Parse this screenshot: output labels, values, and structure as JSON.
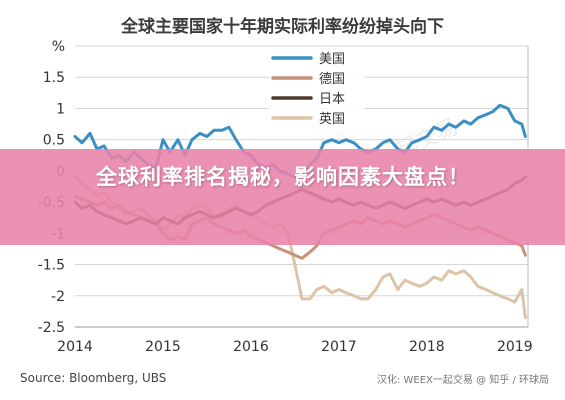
{
  "chart_data": {
    "type": "line",
    "title": "全球主要国家十年期实际利率纷纷掉头向下",
    "ylabel": "%",
    "ylim": [
      -2.5,
      2
    ],
    "yticks": [
      -2.5,
      -2,
      -1.5,
      -1,
      -0.5,
      0,
      0.5,
      1,
      1.5,
      2
    ],
    "ytick_labels": [
      "-2.5",
      "-2",
      "-1.5",
      "-1",
      "-0.5",
      "0",
      "0.5",
      "1",
      "1.5",
      "%"
    ],
    "xlim": [
      2014,
      2019.15
    ],
    "xticks": [
      2014,
      2015,
      2016,
      2017,
      2018,
      2019
    ],
    "xtick_labels": [
      "2014",
      "2015",
      "2016",
      "2017",
      "2018",
      "2019"
    ],
    "grid": true,
    "legend_position": "top-center",
    "series": [
      {
        "name": "美国",
        "color": "#3a8fc4",
        "x": [
          2014.0,
          2014.08,
          2014.17,
          2014.25,
          2014.33,
          2014.42,
          2014.5,
          2014.58,
          2014.67,
          2014.75,
          2014.83,
          2014.92,
          2015.0,
          2015.08,
          2015.17,
          2015.25,
          2015.33,
          2015.42,
          2015.5,
          2015.58,
          2015.67,
          2015.75,
          2015.83,
          2015.92,
          2016.0,
          2016.08,
          2016.17,
          2016.25,
          2016.33,
          2016.42,
          2016.5,
          2016.58,
          2016.67,
          2016.75,
          2016.83,
          2016.92,
          2017.0,
          2017.08,
          2017.17,
          2017.25,
          2017.33,
          2017.42,
          2017.5,
          2017.58,
          2017.67,
          2017.75,
          2017.83,
          2017.92,
          2018.0,
          2018.08,
          2018.17,
          2018.25,
          2018.33,
          2018.42,
          2018.5,
          2018.58,
          2018.67,
          2018.75,
          2018.83,
          2018.92,
          2019.0,
          2019.08,
          2019.12
        ],
        "y": [
          0.55,
          0.45,
          0.6,
          0.35,
          0.4,
          0.2,
          0.25,
          0.15,
          0.3,
          0.2,
          0.1,
          0.05,
          0.5,
          0.3,
          0.5,
          0.25,
          0.5,
          0.6,
          0.55,
          0.65,
          0.65,
          0.7,
          0.5,
          0.3,
          0.25,
          0.1,
          0.05,
          0.1,
          0.0,
          -0.05,
          -0.1,
          -0.05,
          0.1,
          0.2,
          0.45,
          0.5,
          0.45,
          0.5,
          0.45,
          0.35,
          0.3,
          0.35,
          0.45,
          0.5,
          0.35,
          0.3,
          0.45,
          0.5,
          0.55,
          0.7,
          0.65,
          0.75,
          0.7,
          0.8,
          0.75,
          0.85,
          0.9,
          0.95,
          1.05,
          1.0,
          0.8,
          0.75,
          0.55
        ]
      },
      {
        "name": "德国",
        "color": "#c89278",
        "x": [
          2014.0,
          2014.08,
          2014.17,
          2014.25,
          2014.33,
          2014.42,
          2014.5,
          2014.58,
          2014.67,
          2014.75,
          2014.83,
          2014.92,
          2015.0,
          2015.08,
          2015.17,
          2015.25,
          2015.33,
          2015.42,
          2015.5,
          2015.58,
          2015.67,
          2015.75,
          2015.83,
          2015.92,
          2016.0,
          2016.08,
          2016.17,
          2016.25,
          2016.33,
          2016.42,
          2016.5,
          2016.58,
          2016.67,
          2016.75,
          2016.83,
          2016.92,
          2017.0,
          2017.08,
          2017.17,
          2017.25,
          2017.33,
          2017.42,
          2017.5,
          2017.58,
          2017.67,
          2017.75,
          2017.83,
          2017.92,
          2018.0,
          2018.08,
          2018.17,
          2018.25,
          2018.33,
          2018.42,
          2018.5,
          2018.58,
          2018.67,
          2018.75,
          2018.83,
          2018.92,
          2019.0,
          2019.08,
          2019.12
        ],
        "y": [
          -0.4,
          -0.45,
          -0.5,
          -0.55,
          -0.5,
          -0.6,
          -0.55,
          -0.65,
          -0.7,
          -0.75,
          -0.8,
          -0.85,
          -1.0,
          -1.1,
          -1.05,
          -1.1,
          -0.85,
          -0.8,
          -0.75,
          -0.85,
          -0.9,
          -0.95,
          -1.0,
          -0.95,
          -1.05,
          -1.1,
          -1.15,
          -1.2,
          -1.25,
          -1.3,
          -1.35,
          -1.4,
          -1.3,
          -1.2,
          -1.0,
          -0.95,
          -0.9,
          -0.85,
          -0.8,
          -0.85,
          -0.75,
          -0.8,
          -0.85,
          -0.8,
          -0.85,
          -0.9,
          -0.85,
          -0.8,
          -0.75,
          -0.7,
          -0.75,
          -0.8,
          -0.85,
          -0.9,
          -0.95,
          -0.9,
          -0.95,
          -1.0,
          -1.05,
          -1.1,
          -1.15,
          -1.2,
          -1.35
        ]
      },
      {
        "name": "日本",
        "color": "#4a3a2e",
        "x": [
          2014.0,
          2014.08,
          2014.17,
          2014.25,
          2014.33,
          2014.42,
          2014.5,
          2014.58,
          2014.67,
          2014.75,
          2014.83,
          2014.92,
          2015.0,
          2015.08,
          2015.17,
          2015.25,
          2015.33,
          2015.42,
          2015.5,
          2015.58,
          2015.67,
          2015.75,
          2015.83,
          2015.92,
          2016.0,
          2016.08,
          2016.17,
          2016.25,
          2016.33,
          2016.42,
          2016.5,
          2016.58,
          2016.67,
          2016.75,
          2016.83,
          2016.92,
          2017.0,
          2017.08,
          2017.17,
          2017.25,
          2017.33,
          2017.42,
          2017.5,
          2017.58,
          2017.67,
          2017.75,
          2017.83,
          2017.92,
          2018.0,
          2018.08,
          2018.17,
          2018.25,
          2018.33,
          2018.42,
          2018.5,
          2018.58,
          2018.67,
          2018.75,
          2018.83,
          2018.92,
          2019.0,
          2019.08,
          2019.12
        ],
        "y": [
          -0.5,
          -0.6,
          -0.55,
          -0.65,
          -0.7,
          -0.75,
          -0.8,
          -0.85,
          -0.8,
          -0.75,
          -0.8,
          -0.85,
          -0.75,
          -0.8,
          -0.85,
          -0.75,
          -0.7,
          -0.65,
          -0.7,
          -0.75,
          -0.7,
          -0.65,
          -0.6,
          -0.65,
          -0.7,
          -0.65,
          -0.55,
          -0.5,
          -0.45,
          -0.4,
          -0.35,
          -0.3,
          -0.35,
          -0.4,
          -0.45,
          -0.5,
          -0.45,
          -0.5,
          -0.55,
          -0.5,
          -0.55,
          -0.6,
          -0.55,
          -0.5,
          -0.55,
          -0.6,
          -0.55,
          -0.5,
          -0.45,
          -0.5,
          -0.45,
          -0.5,
          -0.55,
          -0.5,
          -0.55,
          -0.5,
          -0.45,
          -0.4,
          -0.35,
          -0.3,
          -0.2,
          -0.15,
          -0.1
        ]
      },
      {
        "name": "英国",
        "color": "#ddc4a6",
        "x": [
          2014.0,
          2014.08,
          2014.17,
          2014.25,
          2014.33,
          2014.42,
          2014.5,
          2014.58,
          2014.67,
          2014.75,
          2014.83,
          2014.92,
          2015.0,
          2015.08,
          2015.17,
          2015.25,
          2015.33,
          2015.42,
          2015.5,
          2015.58,
          2015.67,
          2015.75,
          2015.83,
          2015.92,
          2016.0,
          2016.08,
          2016.17,
          2016.25,
          2016.33,
          2016.42,
          2016.5,
          2016.58,
          2016.67,
          2016.75,
          2016.83,
          2016.92,
          2017.0,
          2017.08,
          2017.17,
          2017.25,
          2017.33,
          2017.42,
          2017.5,
          2017.58,
          2017.67,
          2017.75,
          2017.83,
          2017.92,
          2018.0,
          2018.08,
          2018.17,
          2018.25,
          2018.33,
          2018.42,
          2018.5,
          2018.58,
          2018.67,
          2018.75,
          2018.83,
          2018.92,
          2019.0,
          2019.08,
          2019.12
        ],
        "y": [
          -0.1,
          -0.2,
          -0.3,
          -0.4,
          -0.35,
          -0.5,
          -0.6,
          -0.7,
          -0.65,
          -0.6,
          -0.7,
          -0.8,
          -0.95,
          -0.85,
          -0.7,
          -0.75,
          -0.6,
          -0.55,
          -0.6,
          -0.7,
          -0.75,
          -0.6,
          -0.55,
          -0.65,
          -0.7,
          -0.75,
          -0.85,
          -0.9,
          -0.85,
          -1.0,
          -1.5,
          -2.05,
          -2.05,
          -1.9,
          -1.85,
          -1.95,
          -1.9,
          -1.95,
          -2.0,
          -2.05,
          -2.05,
          -1.9,
          -1.7,
          -1.65,
          -1.9,
          -1.75,
          -1.8,
          -1.85,
          -1.8,
          -1.7,
          -1.75,
          -1.6,
          -1.65,
          -1.6,
          -1.7,
          -1.85,
          -1.9,
          -1.95,
          -2.0,
          -2.05,
          -2.1,
          -1.9,
          -2.35
        ]
      }
    ]
  },
  "overlay": {
    "banner_text": "全球利率排名揭秘，影响因素大盘点！",
    "banner_color": "#e882a8"
  },
  "footer": {
    "source": "Source: Bloomberg, UBS",
    "credit": "汉化: WEEX一起交易 @ 知乎 / 环球局"
  },
  "watermark": {
    "text": "一起交易"
  }
}
